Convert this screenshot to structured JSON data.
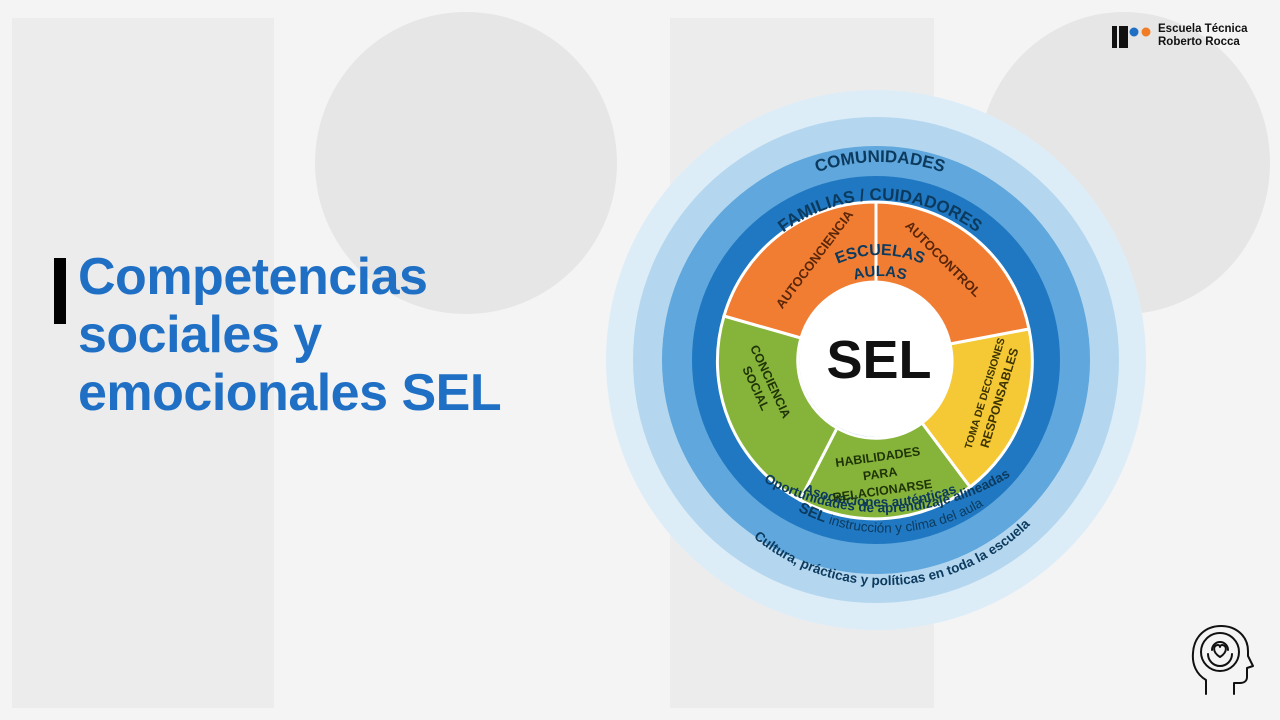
{
  "slide": {
    "title_lines": [
      "Competencias",
      "sociales y",
      "emocionales SEL"
    ]
  },
  "logo": {
    "line1": "Escuela Técnica",
    "line2": "Roberto Rocca",
    "colors": {
      "bar": "#111111",
      "dot_blue": "#1f6fc5",
      "dot_orange": "#f07d26"
    }
  },
  "diagram": {
    "center": "SEL",
    "rings": {
      "comunidades": "COMUNIDADES",
      "familias": "FAMILIAS / CUIDADORES",
      "escuelas": "ESCUELAS",
      "aulas": "AULAS"
    },
    "bottom_labels": {
      "instruccion_prefix": "SEL",
      "instruccion": " instrucción y clima del aula",
      "cultura": "Cultura, prácticas y políticas en toda la escuela",
      "asociaciones": "Asociaciones auténticas",
      "oportunidades": "Oportunidades de aprendizaje alineadas"
    },
    "segments": {
      "autoconciencia": "AUTOCONCIENCIA",
      "autocontrol": "AUTOCONTROL",
      "toma_decisiones_1": "TOMA DE DECISIONES",
      "toma_decisiones_2": "RESPONSABLES",
      "habilidades_1": "HABILIDADES",
      "habilidades_2": "PARA",
      "habilidades_3": "RELACIONARSE",
      "conciencia_1": "CONCIENCIA",
      "conciencia_2": "SOCIAL"
    },
    "colors": {
      "ring_comunidades": "#ddedf8",
      "ring_familias": "#b4d7ef",
      "ring_escuelas": "#5fa7dc",
      "ring_aulas": "#1f78c1",
      "orange": "#f07d32",
      "yellow": "#f4c935",
      "green": "#86b43a",
      "center": "#ffffff"
    }
  },
  "icons": {
    "head": "head-heart-icon"
  }
}
